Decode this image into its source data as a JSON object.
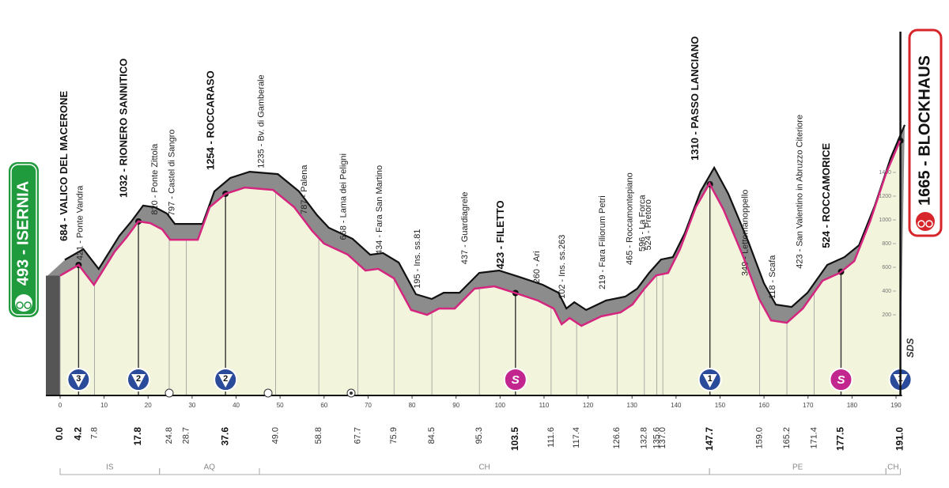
{
  "chart_data": {
    "type": "area",
    "start": "493 - ISERNIA",
    "finish": "1665 - BLOCKHAUS",
    "logo": "SDS",
    "x": [
      0,
      4.2,
      7.7,
      12.4,
      15.1,
      17.8,
      20.5,
      23.2,
      25,
      31.3,
      34,
      37.6,
      42,
      48.4,
      53.2,
      57.3,
      60,
      65.4,
      69.4,
      72.3,
      75.9,
      79.8,
      83.4,
      86.1,
      89.7,
      94.2,
      98.7,
      103.2,
      108.6,
      112.2,
      114,
      115.8,
      118.5,
      123,
      127.4,
      130.1,
      132.8,
      135.5,
      138.2,
      140.9,
      144.5,
      147.6,
      150.8,
      155.3,
      158.9,
      161.6,
      165.2,
      168.8,
      173.3,
      177.2,
      180.5,
      184.1,
      187.7,
      190.9
    ],
    "values": [
      530,
      620,
      453,
      733,
      853,
      987,
      973,
      920,
      833,
      833,
      1107,
      1220,
      1273,
      1253,
      1107,
      907,
      800,
      707,
      573,
      587,
      507,
      240,
      200,
      253,
      253,
      420,
      440,
      387,
      320,
      253,
      120,
      173,
      107,
      187,
      220,
      287,
      420,
      533,
      553,
      753,
      1107,
      1307,
      1087,
      687,
      333,
      153,
      133,
      253,
      487,
      553,
      653,
      987,
      1387,
      1667
    ],
    "line_color": "#d4257f",
    "fill_color": "#f3f4dc",
    "shadow_color": "#8c8c8c",
    "xlim": [
      0,
      190
    ],
    "xticks": [
      0,
      10,
      20,
      30,
      40,
      50,
      60,
      70,
      80,
      90,
      100,
      110,
      120,
      130,
      140,
      150,
      160,
      170,
      180,
      190
    ],
    "ylim": [
      0,
      2000
    ],
    "yticks": [
      200,
      400,
      600,
      800,
      1000,
      1200,
      1400
    ],
    "waypoints": [
      {
        "km": {
          "value": 0,
          "label": "0.0"
        }
      },
      {
        "km": 4.2,
        "name": "684 - VALICO DEL MACERONE",
        "marker": "3"
      },
      {
        "km": 7.8,
        "name": "421 - Ponte Vandra"
      },
      {
        "km": 17.8,
        "name": "1032 - RIONERO SANNITICO",
        "marker": "2"
      },
      {
        "km": 24.8,
        "name": "820 - Ponte Zittola"
      },
      {
        "km": 28.7,
        "name": "797 - Castel di Sangro"
      },
      {
        "km": 37.6,
        "name": "1254 - ROCCARASO",
        "marker": "2"
      },
      {
        "km": {
          "value": 49,
          "label": "49.0"
        },
        "name": "1235 - Bv. di Gamberale"
      },
      {
        "km": 58.8,
        "name": "787 - Palena"
      },
      {
        "km": 67.7,
        "name": "668 - Lama dei Peligni"
      },
      {
        "km": 75.9,
        "name": "434 - Fara San Martino"
      },
      {
        "km": 84.5,
        "name": "195 - Ins. ss.81"
      },
      {
        "km": 95.3,
        "name": "437 - Guardiagrele"
      },
      {
        "km": 103.5,
        "name": "423 - FILETTO",
        "marker": "S"
      },
      {
        "km": 111.6,
        "name": "260 - Ari"
      },
      {
        "km": 117.4,
        "name": "102 - Ins. ss.263"
      },
      {
        "km": 126.6,
        "name": "219 - Fara Filiorum Petri"
      },
      {
        "km": 132.8,
        "name": "465 - Roccamontepiano"
      },
      {
        "km": 135.6,
        "name": "596 - La Forca"
      },
      {
        "km": {
          "value": 137,
          "label": "137.0"
        },
        "name": "524 - Pretoro"
      },
      {
        "km": 147.7,
        "name": "1310 - PASSO LANCIANO",
        "marker": "1"
      },
      {
        "km": {
          "value": 159,
          "label": "159.0"
        },
        "name": "349 - Lettomanoppello"
      },
      {
        "km": 165.2,
        "name": "118 - Scafa"
      },
      {
        "km": 171.4,
        "name": "423 - San Valentino in Abruzzo Citeriore"
      },
      {
        "km": 177.5,
        "name": "524 - ROCCAMORICE",
        "marker": "S"
      },
      {
        "km": {
          "value": 191,
          "label": "191.0"
        },
        "marker": "1"
      }
    ],
    "regions": [
      {
        "name": "IS",
        "from": 0,
        "to": 22.6
      },
      {
        "name": "AQ",
        "from": 22.6,
        "to": 45.3
      },
      {
        "name": "CH",
        "from": 45.3,
        "to": 147.6
      },
      {
        "name": "PE",
        "from": 147.6,
        "to": 187.7
      },
      {
        "name": "CH",
        "from": 187.7,
        "to": 191
      }
    ]
  }
}
